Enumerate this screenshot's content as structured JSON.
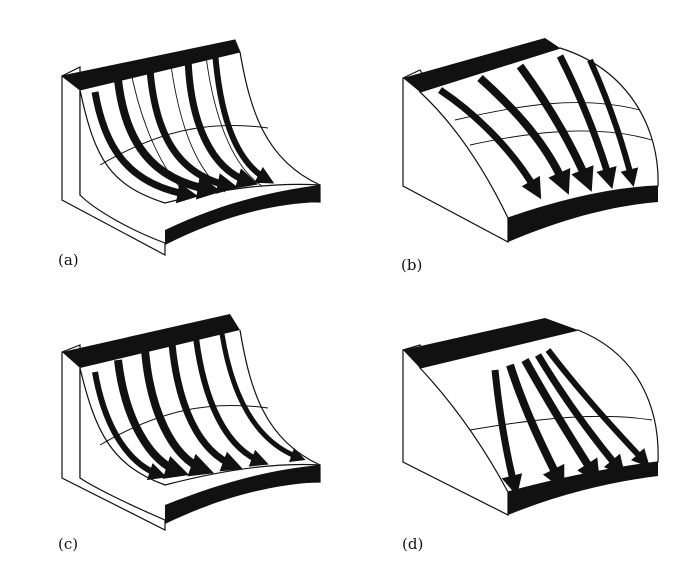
{
  "figure": {
    "panels": [
      {
        "id": "a",
        "label": "(a)",
        "surface": "concave",
        "flow": "down-front"
      },
      {
        "id": "b",
        "label": "(b)",
        "surface": "convex",
        "flow": "down-front"
      },
      {
        "id": "c",
        "label": "(c)",
        "surface": "concave",
        "flow": "down-front"
      },
      {
        "id": "d",
        "label": "(d)",
        "surface": "convex",
        "flow": "down-front"
      }
    ],
    "colors": {
      "ink": "#111111",
      "paper": "#ffffff"
    }
  }
}
